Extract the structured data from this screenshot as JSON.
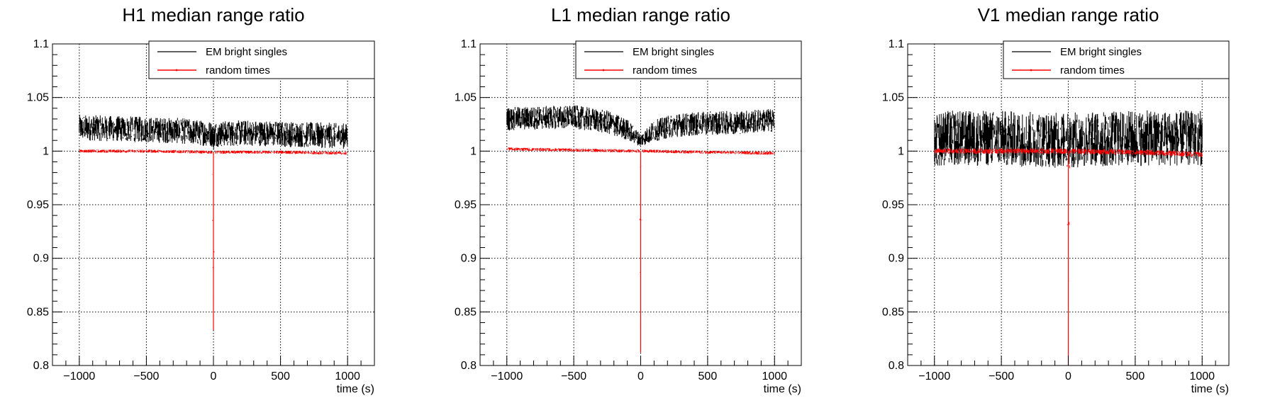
{
  "figure": {
    "colors": {
      "black_series": "#000000",
      "red_series": "#ff0000",
      "frame": "#000000",
      "grid": "#000000",
      "background": "#ffffff"
    }
  },
  "chart_data": [
    {
      "type": "line",
      "title": "H1 median range ratio",
      "xlabel": "time (s)",
      "ylabel": "",
      "xlim": [
        -1200,
        1200
      ],
      "ylim": [
        0.8,
        1.1
      ],
      "x_ticks": [
        -1000,
        -500,
        0,
        500,
        1000
      ],
      "x_tick_labels": [
        "−1000",
        "−500",
        "0",
        "500",
        "1000"
      ],
      "y_ticks": [
        0.8,
        0.85,
        0.9,
        0.95,
        1.0,
        1.05,
        1.1
      ],
      "y_tick_labels": [
        "0.8",
        "0.85",
        "0.9",
        "0.95",
        "1",
        "1.05",
        "1.1"
      ],
      "grid": true,
      "legend": "top-right",
      "series": [
        {
          "name": "EM bright singles",
          "color": "#000000",
          "x": [
            -1000,
            -750,
            -500,
            -250,
            -10,
            0,
            10,
            250,
            500,
            750,
            1000
          ],
          "y_center": [
            1.022,
            1.021,
            1.02,
            1.019,
            1.016,
            1.012,
            1.016,
            1.017,
            1.016,
            1.015,
            1.014
          ],
          "y_spread": [
            0.012,
            0.012,
            0.012,
            0.012,
            0.012,
            0.012,
            0.012,
            0.012,
            0.012,
            0.012,
            0.012
          ]
        },
        {
          "name": "random times",
          "color": "#ff0000",
          "x": [
            -1000,
            -500,
            -10,
            0,
            10,
            500,
            1000
          ],
          "y_center": [
            1.0,
            1.0,
            0.999,
            0.833,
            0.999,
            0.999,
            0.998
          ],
          "y_spread": [
            0.0015,
            0.0015,
            0.0015,
            0.0,
            0.0015,
            0.0015,
            0.0015
          ]
        }
      ]
    },
    {
      "type": "line",
      "title": "L1 median range ratio",
      "xlabel": "time (s)",
      "ylabel": "",
      "xlim": [
        -1200,
        1200
      ],
      "ylim": [
        0.8,
        1.1
      ],
      "x_ticks": [
        -1000,
        -500,
        0,
        500,
        1000
      ],
      "x_tick_labels": [
        "−1000",
        "−500",
        "0",
        "500",
        "1000"
      ],
      "y_ticks": [
        0.8,
        0.85,
        0.9,
        0.95,
        1.0,
        1.05,
        1.1
      ],
      "y_tick_labels": [
        "0.8",
        "0.85",
        "0.9",
        "0.95",
        "1",
        "1.05",
        "1.1"
      ],
      "grid": true,
      "legend": "top-right",
      "series": [
        {
          "name": "EM bright singles",
          "color": "#000000",
          "x": [
            -1000,
            -750,
            -500,
            -250,
            -100,
            0,
            100,
            250,
            500,
            750,
            1000
          ],
          "y_center": [
            1.03,
            1.031,
            1.032,
            1.027,
            1.02,
            1.01,
            1.019,
            1.024,
            1.026,
            1.027,
            1.029
          ],
          "y_spread": [
            0.011,
            0.011,
            0.011,
            0.011,
            0.01,
            0.006,
            0.01,
            0.011,
            0.011,
            0.011,
            0.011
          ]
        },
        {
          "name": "random times",
          "color": "#ff0000",
          "x": [
            -1000,
            -500,
            -10,
            0,
            10,
            500,
            1000
          ],
          "y_center": [
            1.002,
            1.001,
            1.0,
            0.812,
            1.0,
            0.999,
            0.998
          ],
          "y_spread": [
            0.0015,
            0.0015,
            0.0015,
            0.0,
            0.0015,
            0.0015,
            0.0015
          ]
        }
      ]
    },
    {
      "type": "line",
      "title": "V1 median range ratio",
      "xlabel": "time (s)",
      "ylabel": "",
      "xlim": [
        -1200,
        1200
      ],
      "ylim": [
        0.8,
        1.1
      ],
      "x_ticks": [
        -1000,
        -500,
        0,
        500,
        1000
      ],
      "x_tick_labels": [
        "−1000",
        "−500",
        "0",
        "500",
        "1000"
      ],
      "y_ticks": [
        0.8,
        0.85,
        0.9,
        0.95,
        1.0,
        1.05,
        1.1
      ],
      "y_tick_labels": [
        "0.8",
        "0.85",
        "0.9",
        "0.95",
        "1",
        "1.05",
        "1.1"
      ],
      "grid": true,
      "legend": "top-right",
      "series": [
        {
          "name": "EM bright singles",
          "color": "#000000",
          "x": [
            -1000,
            -500,
            0,
            500,
            1000
          ],
          "y_center": [
            1.012,
            1.012,
            1.01,
            1.012,
            1.012
          ],
          "y_spread": [
            0.026,
            0.026,
            0.026,
            0.026,
            0.026
          ]
        },
        {
          "name": "random times",
          "color": "#ff0000",
          "x": [
            -1000,
            -500,
            -10,
            0,
            10,
            500,
            1000
          ],
          "y_center": [
            1.0,
            1.0,
            1.0,
            0.8,
            1.0,
            0.999,
            0.997
          ],
          "y_spread": [
            0.0025,
            0.0025,
            0.0025,
            0.0,
            0.0025,
            0.0025,
            0.0025
          ]
        }
      ]
    }
  ]
}
